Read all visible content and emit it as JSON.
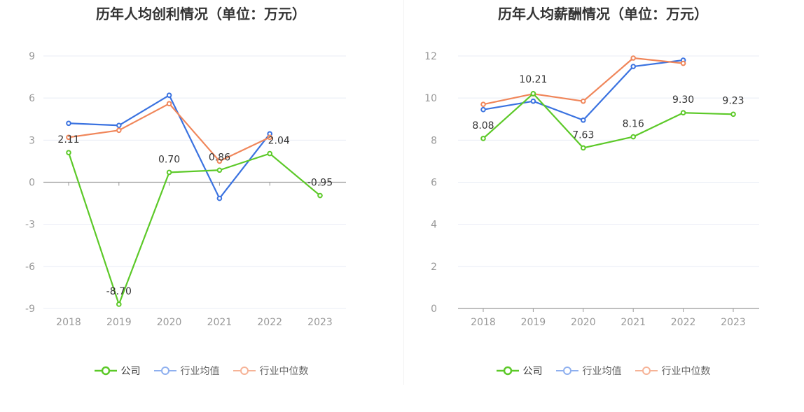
{
  "charts": [
    {
      "id": "left",
      "title": "历年人均创利情况（单位：万元）",
      "ylim": [
        -9,
        9
      ],
      "yticks": [
        9,
        6,
        3,
        0,
        -3,
        -6,
        -9
      ],
      "baseline": 0,
      "data_labels": [
        "2.11",
        "-8.70",
        "0.70",
        "0.86",
        "2.04",
        "-0.95"
      ]
    },
    {
      "id": "right",
      "title": "历年人均薪酬情况（单位：万元）",
      "ylim": [
        0,
        12
      ],
      "yticks": [
        12,
        10,
        8,
        6,
        4,
        2,
        0
      ],
      "baseline": 0,
      "data_labels": [
        "8.08",
        "10.21",
        "7.63",
        "8.16",
        "9.30",
        "9.23"
      ]
    }
  ],
  "legend": {
    "company": "公司",
    "industry_avg": "行业均值",
    "industry_median": "行业中位数"
  },
  "colors": {
    "company": "#5cc928",
    "industry_avg": "#3a72e0",
    "industry_median": "#f0865a",
    "grid": "#e8ecf5",
    "axis": "#999999"
  },
  "chart_data": [
    {
      "type": "line",
      "title": "历年人均创利情况（单位：万元）",
      "categories": [
        "2018",
        "2019",
        "2020",
        "2021",
        "2022",
        "2023"
      ],
      "ylim": [
        -9,
        9
      ],
      "grid": true,
      "legend_position": "bottom",
      "series": [
        {
          "name": "公司",
          "values": [
            2.11,
            -8.7,
            0.7,
            0.86,
            2.04,
            -0.95
          ]
        },
        {
          "name": "行业均值",
          "values": [
            4.2,
            4.05,
            6.2,
            -1.15,
            3.45,
            null
          ]
        },
        {
          "name": "行业中位数",
          "values": [
            3.2,
            3.7,
            5.6,
            1.5,
            3.2,
            null
          ]
        }
      ]
    },
    {
      "type": "line",
      "title": "历年人均薪酬情况（单位：万元）",
      "categories": [
        "2018",
        "2019",
        "2020",
        "2021",
        "2022",
        "2023"
      ],
      "ylim": [
        0,
        12
      ],
      "grid": true,
      "legend_position": "bottom",
      "series": [
        {
          "name": "公司",
          "values": [
            8.08,
            10.21,
            7.63,
            8.16,
            9.3,
            9.23
          ]
        },
        {
          "name": "行业均值",
          "values": [
            9.45,
            9.85,
            8.95,
            11.5,
            11.8,
            null
          ]
        },
        {
          "name": "行业中位数",
          "values": [
            9.7,
            10.2,
            9.85,
            11.9,
            11.65,
            null
          ]
        }
      ]
    }
  ]
}
